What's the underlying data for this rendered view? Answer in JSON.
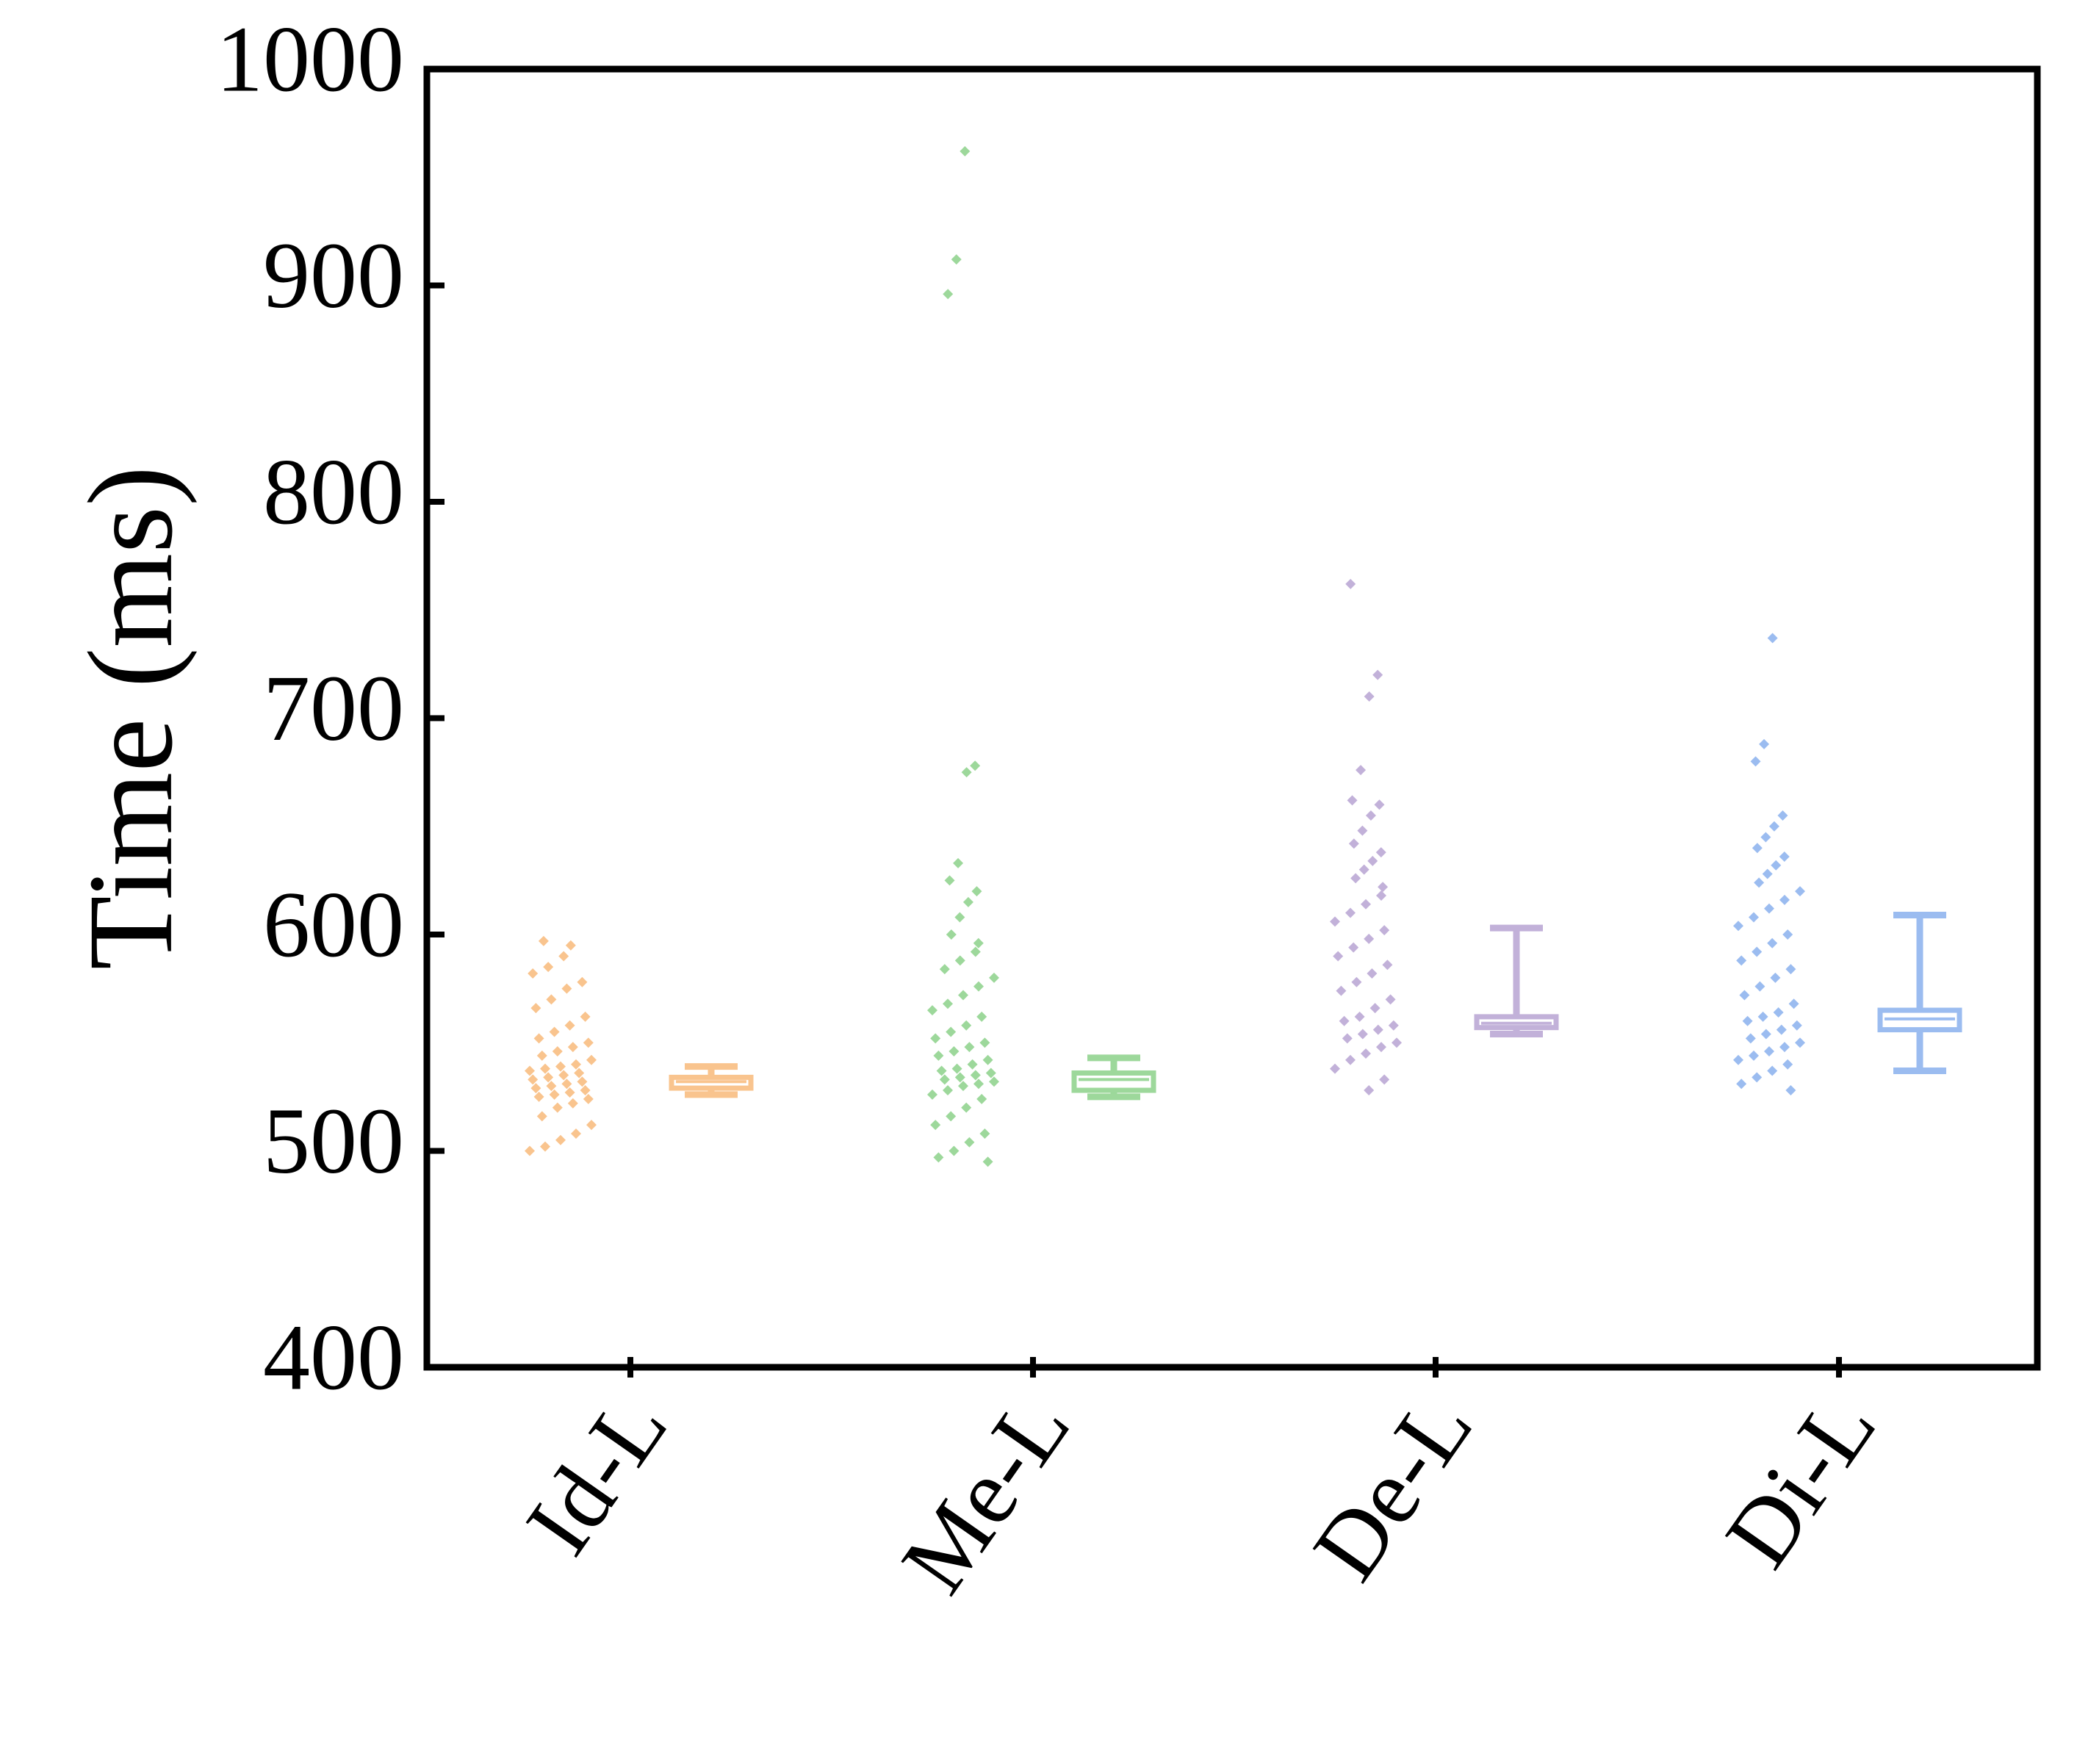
{
  "chart_data": {
    "type": "box",
    "ylabel": "Time (ms)",
    "categories": [
      "Id-L",
      "Me-L",
      "De-L",
      "Di-L"
    ],
    "ylim": [
      400,
      1000
    ],
    "yticks": [
      400,
      500,
      600,
      700,
      800,
      900,
      1000
    ],
    "groups": [
      {
        "color": "#f9c48e",
        "whislo": 526,
        "q1": 529,
        "med": 532,
        "q3": 534,
        "whishi": 539,
        "points": [
          597,
          595,
          590,
          585,
          582,
          578,
          575,
          570,
          566,
          562,
          558,
          555,
          552,
          550,
          548,
          546,
          544,
          542,
          540,
          539,
          538,
          537,
          536,
          535,
          534,
          533,
          532,
          531,
          530,
          529,
          528,
          527,
          526,
          525,
          524,
          522,
          520,
          516,
          512,
          508,
          505,
          502,
          500
        ]
      },
      {
        "color": "#9dd89b",
        "whislo": 525,
        "q1": 528,
        "med": 533,
        "q3": 536,
        "whishi": 543,
        "points": [
          962,
          912,
          896,
          678,
          675,
          633,
          625,
          620,
          615,
          608,
          600,
          596,
          592,
          588,
          584,
          580,
          576,
          572,
          568,
          565,
          562,
          558,
          555,
          552,
          550,
          548,
          546,
          544,
          542,
          540,
          538,
          537,
          536,
          535,
          534,
          533,
          532,
          531,
          530,
          528,
          526,
          524,
          520,
          516,
          512,
          508,
          504,
          500,
          497,
          495
        ]
      },
      {
        "color": "#c2b1d9",
        "whislo": 554,
        "q1": 557,
        "med": 559,
        "q3": 562,
        "whishi": 603,
        "points": [
          762,
          720,
          710,
          676,
          662,
          660,
          655,
          648,
          642,
          638,
          634,
          630,
          626,
          622,
          618,
          614,
          610,
          606,
          602,
          598,
          594,
          590,
          586,
          582,
          578,
          574,
          570,
          566,
          562,
          560,
          558,
          556,
          554,
          552,
          550,
          548,
          545,
          542,
          538,
          533,
          528
        ]
      },
      {
        "color": "#9bbcf0",
        "whislo": 537,
        "q1": 556,
        "med": 561,
        "q3": 565,
        "whishi": 609,
        "points": [
          737,
          688,
          680,
          655,
          650,
          645,
          640,
          636,
          632,
          628,
          624,
          620,
          616,
          612,
          608,
          604,
          600,
          596,
          592,
          588,
          584,
          580,
          576,
          572,
          568,
          564,
          562,
          560,
          558,
          556,
          554,
          552,
          550,
          548,
          546,
          544,
          542,
          540,
          537,
          534,
          531,
          528
        ]
      }
    ]
  }
}
